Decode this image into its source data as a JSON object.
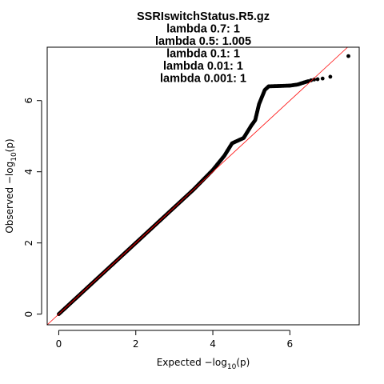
{
  "chart_data": {
    "type": "scatter",
    "title_lines": [
      "SSRIswitchStatus.R5.gz",
      "lambda 0.7: 1",
      "lambda 0.5: 1.005",
      "lambda 0.1: 1",
      "lambda 0.01: 1",
      "lambda 0.001: 1"
    ],
    "xlabel": {
      "prefix": "Expected  −log",
      "sub": "10",
      "suffix": "(p)"
    },
    "ylabel": {
      "prefix": "Observed  −log",
      "sub": "10",
      "suffix": "(p)"
    },
    "xlim": [
      -0.3,
      7.8
    ],
    "ylim": [
      -0.3,
      7.5
    ],
    "x_ticks": [
      0,
      2,
      4,
      6
    ],
    "y_ticks": [
      0,
      2,
      4,
      6
    ],
    "reference_line": {
      "slope": 1,
      "intercept": 0,
      "color": "#ff0000"
    },
    "point_color": "#000000",
    "curve_points": [
      [
        0,
        0
      ],
      [
        1,
        1
      ],
      [
        2,
        2
      ],
      [
        3,
        3
      ],
      [
        3.5,
        3.5
      ],
      [
        4.0,
        4.05
      ],
      [
        4.3,
        4.45
      ],
      [
        4.5,
        4.8
      ],
      [
        4.8,
        4.95
      ],
      [
        5.0,
        5.3
      ],
      [
        5.1,
        5.45
      ],
      [
        5.2,
        5.9
      ],
      [
        5.35,
        6.3
      ],
      [
        5.45,
        6.4
      ],
      [
        6.0,
        6.42
      ],
      [
        6.2,
        6.45
      ],
      [
        6.4,
        6.52
      ],
      [
        6.5,
        6.55
      ]
    ],
    "tail_points": [
      [
        6.55,
        6.57
      ],
      [
        6.63,
        6.59
      ],
      [
        6.72,
        6.6
      ],
      [
        6.85,
        6.62
      ],
      [
        7.05,
        6.67
      ],
      [
        7.52,
        7.25
      ]
    ]
  }
}
